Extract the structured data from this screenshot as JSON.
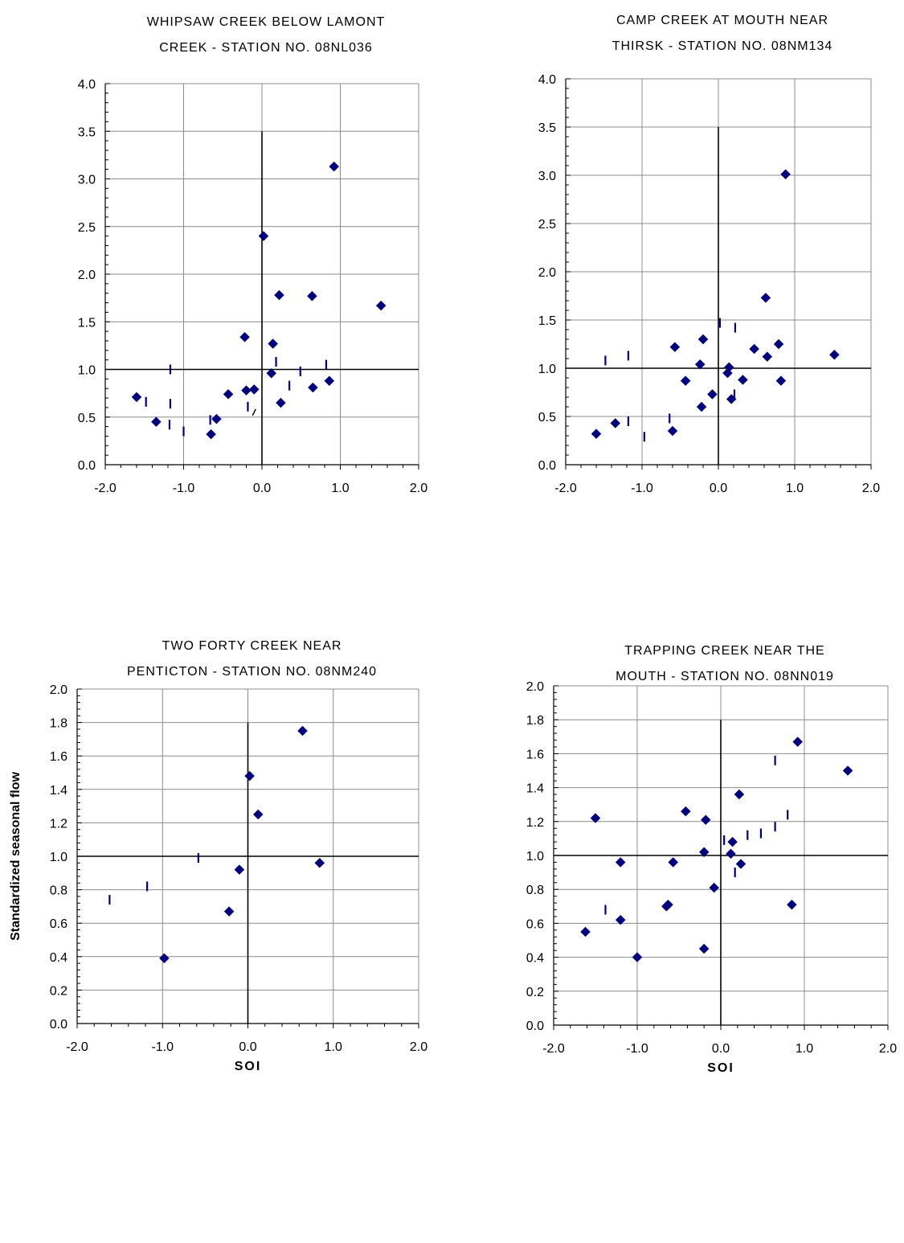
{
  "chart_data": [
    {
      "type": "scatter",
      "title_lines": [
        "WHIPSAW CREEK BELOW LAMONT",
        "CREEK - STATION NO. 08NL036"
      ],
      "xlabel": "",
      "ylabel": "",
      "xlim": [
        -2.0,
        2.0
      ],
      "ylim": [
        0.0,
        4.0
      ],
      "xticks": [
        "-2.0",
        "-1.0",
        "0.0",
        "1.0",
        "2.0"
      ],
      "yticks": [
        "0.0",
        "0.5",
        "1.0",
        "1.5",
        "2.0",
        "2.5",
        "3.0",
        "3.5",
        "4.0"
      ],
      "grid": true,
      "ref_x": 0.0,
      "ref_y": 1.0,
      "ref_top": 3.5,
      "color": "#00007f",
      "points": [
        [
          -1.6,
          0.71
        ],
        [
          -1.35,
          0.45
        ],
        [
          -0.65,
          0.32
        ],
        [
          -0.58,
          0.48
        ],
        [
          -0.43,
          0.74
        ],
        [
          -0.22,
          1.34
        ],
        [
          -0.2,
          0.78
        ],
        [
          -0.1,
          0.79
        ],
        [
          0.02,
          2.4
        ],
        [
          0.12,
          0.96
        ],
        [
          0.14,
          1.27
        ],
        [
          0.22,
          1.78
        ],
        [
          0.24,
          0.65
        ],
        [
          0.64,
          1.77
        ],
        [
          0.65,
          0.81
        ],
        [
          0.86,
          0.88
        ],
        [
          0.92,
          3.13
        ],
        [
          1.52,
          1.67
        ]
      ],
      "ticks": [
        [
          -1.48,
          0.66
        ],
        [
          -1.17,
          1.0
        ],
        [
          -1.17,
          0.64
        ],
        [
          -1.18,
          0.42
        ],
        [
          -1.0,
          0.35
        ],
        [
          -0.66,
          0.47
        ],
        [
          -0.18,
          0.61
        ],
        [
          0.18,
          1.08
        ],
        [
          0.35,
          0.83
        ],
        [
          0.49,
          0.98
        ],
        [
          0.82,
          1.05
        ]
      ],
      "slash_ticks": [
        [
          -0.1,
          0.55
        ]
      ]
    },
    {
      "type": "scatter",
      "title_lines": [
        "CAMP CREEK AT MOUTH NEAR",
        "THIRSK - STATION NO. 08NM134"
      ],
      "xlabel": "",
      "ylabel": "",
      "xlim": [
        -2.0,
        2.0
      ],
      "ylim": [
        0.0,
        4.0
      ],
      "xticks": [
        "-2.0",
        "-1.0",
        "0.0",
        "1.0",
        "2.0"
      ],
      "yticks": [
        "0.0",
        "0.5",
        "1.0",
        "1.5",
        "2.0",
        "2.5",
        "3.0",
        "3.5",
        "4.0"
      ],
      "grid": true,
      "ref_x": 0.0,
      "ref_y": 1.0,
      "ref_top": 3.5,
      "color": "#00007f",
      "points": [
        [
          -1.6,
          0.32
        ],
        [
          -1.35,
          0.43
        ],
        [
          -0.6,
          0.35
        ],
        [
          -0.57,
          1.22
        ],
        [
          -0.43,
          0.87
        ],
        [
          -0.24,
          1.04
        ],
        [
          -0.22,
          0.6
        ],
        [
          -0.2,
          1.3
        ],
        [
          -0.08,
          0.73
        ],
        [
          0.12,
          0.95
        ],
        [
          0.14,
          1.01
        ],
        [
          0.17,
          0.68
        ],
        [
          0.32,
          0.88
        ],
        [
          0.47,
          1.2
        ],
        [
          0.62,
          1.73
        ],
        [
          0.64,
          1.12
        ],
        [
          0.79,
          1.25
        ],
        [
          0.82,
          0.87
        ],
        [
          0.88,
          3.01
        ],
        [
          1.52,
          1.14
        ]
      ],
      "ticks": [
        [
          -1.48,
          1.08
        ],
        [
          -1.18,
          1.13
        ],
        [
          -1.18,
          0.45
        ],
        [
          -0.97,
          0.29
        ],
        [
          -0.64,
          0.48
        ],
        [
          0.02,
          1.47
        ],
        [
          0.21,
          0.73
        ],
        [
          0.22,
          1.42
        ]
      ],
      "slash_ticks": []
    },
    {
      "type": "scatter",
      "title_lines": [
        "TWO FORTY CREEK NEAR",
        "PENTICTON - STATION NO. 08NM240"
      ],
      "xlabel": "SOI",
      "ylabel": "Standardized seasonal flow",
      "xlim": [
        -2.0,
        2.0
      ],
      "ylim": [
        0.0,
        2.0
      ],
      "xticks": [
        "-2.0",
        "-1.0",
        "0.0",
        "1.0",
        "2.0"
      ],
      "yticks": [
        "0.0",
        "0.2",
        "0.4",
        "0.6",
        "0.8",
        "1.0",
        "1.2",
        "1.4",
        "1.6",
        "1.8",
        "2.0"
      ],
      "grid": true,
      "ref_x": 0.0,
      "ref_y": 1.0,
      "ref_top": 1.8,
      "color": "#00007f",
      "points": [
        [
          -0.98,
          0.39
        ],
        [
          -0.22,
          0.67
        ],
        [
          -0.1,
          0.92
        ],
        [
          0.02,
          1.48
        ],
        [
          0.12,
          1.25
        ],
        [
          0.64,
          1.75
        ],
        [
          0.84,
          0.96
        ]
      ],
      "ticks": [
        [
          -1.62,
          0.74
        ],
        [
          -1.18,
          0.82
        ],
        [
          -0.58,
          0.99
        ]
      ],
      "slash_ticks": []
    },
    {
      "type": "scatter",
      "title_lines": [
        "TRAPPING CREEK NEAR THE",
        "MOUTH - STATION NO. 08NN019"
      ],
      "xlabel": "SOI",
      "ylabel": "",
      "xlim": [
        -2.0,
        2.0
      ],
      "ylim": [
        0.0,
        2.0
      ],
      "xticks": [
        "-2.0",
        "-1.0",
        "0.0",
        "1.0",
        "2.0"
      ],
      "yticks": [
        "0.0",
        "0.2",
        "0.4",
        "0.6",
        "0.8",
        "1.0",
        "1.2",
        "1.4",
        "1.6",
        "1.8",
        "2.0"
      ],
      "grid": true,
      "ref_x": 0.0,
      "ref_y": 1.0,
      "ref_top": 1.8,
      "color": "#00007f",
      "points": [
        [
          -1.62,
          0.55
        ],
        [
          -1.5,
          1.22
        ],
        [
          -1.2,
          0.96
        ],
        [
          -1.2,
          0.62
        ],
        [
          -1.0,
          0.4
        ],
        [
          -0.65,
          0.7
        ],
        [
          -0.63,
          0.71
        ],
        [
          -0.57,
          0.96
        ],
        [
          -0.42,
          1.26
        ],
        [
          -0.2,
          1.02
        ],
        [
          -0.2,
          0.45
        ],
        [
          -0.18,
          1.21
        ],
        [
          -0.08,
          0.81
        ],
        [
          0.12,
          1.01
        ],
        [
          0.14,
          1.08
        ],
        [
          0.22,
          1.36
        ],
        [
          0.24,
          0.95
        ],
        [
          0.85,
          0.71
        ],
        [
          0.92,
          1.67
        ],
        [
          1.52,
          1.5
        ]
      ],
      "ticks": [
        [
          -1.38,
          0.68
        ],
        [
          0.04,
          1.09
        ],
        [
          0.17,
          0.9
        ],
        [
          0.32,
          1.12
        ],
        [
          0.48,
          1.13
        ],
        [
          0.65,
          1.56
        ],
        [
          0.65,
          1.17
        ],
        [
          0.8,
          1.24
        ]
      ],
      "slash_ticks": []
    }
  ]
}
